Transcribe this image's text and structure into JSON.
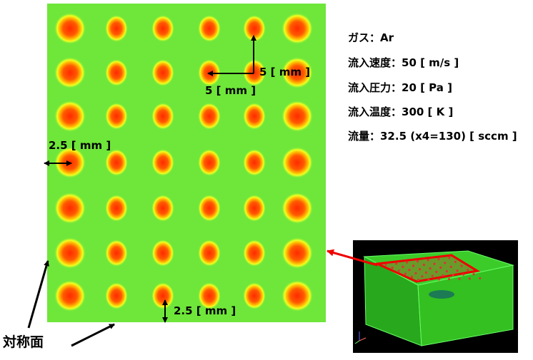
{
  "conditions": [
    "ガス：Ar",
    "流入速度：50 [ m/s ]",
    "流入圧力：20 [ Pa ]",
    "流入温度：300 [ K ]",
    "流量：32.5 (x4=130) [ sccm ]"
  ],
  "annotations": {
    "pitch_vertical": "5 [ mm ]",
    "pitch_horizontal": "5 [ mm ]",
    "margin_side": "2.5 [ mm ]",
    "margin_bottom": "2.5 [ mm ]",
    "symmetry_plane": "対称面"
  }
}
